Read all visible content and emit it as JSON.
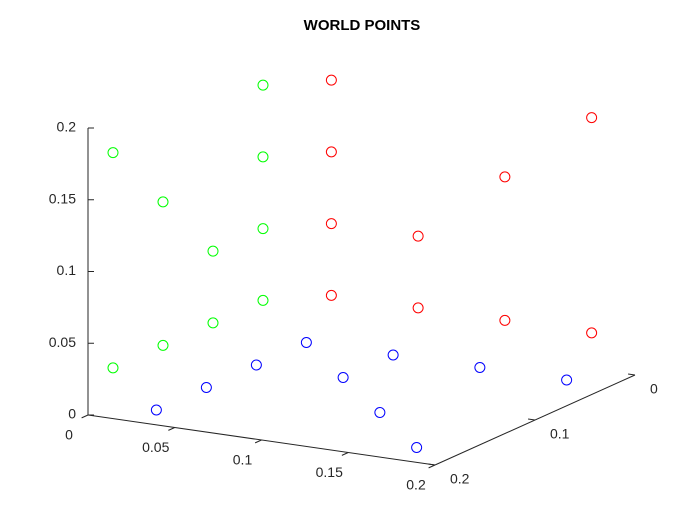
{
  "chart_data": {
    "type": "scatter3d",
    "title": "WORLD POINTS",
    "xlim": [
      0,
      0.2
    ],
    "ylim": [
      0,
      0.2
    ],
    "zlim": [
      0,
      0.2
    ],
    "xticks": [
      0,
      0.05,
      0.1,
      0.15,
      0.2
    ],
    "yticks": [
      0,
      0.1,
      0.2
    ],
    "zticks": [
      0,
      0.05,
      0.1,
      0.15,
      0.2
    ],
    "series": [
      {
        "color": "#0000ff",
        "x": [
          0.025,
          0.025,
          0.025,
          0.025,
          0.075,
          0.075,
          0.125,
          0.125,
          0.175,
          0.175
        ],
        "y": [
          0.175,
          0.125,
          0.075,
          0.025,
          0.075,
          0.025,
          0.125,
          0.025,
          0.175,
          0.025
        ],
        "z": [
          0,
          0,
          0,
          0,
          0,
          0,
          0,
          0,
          0,
          0
        ]
      },
      {
        "color": "#00ff00",
        "x": [
          0,
          0,
          0,
          0,
          0,
          0,
          0,
          0,
          0,
          0
        ],
        "y": [
          0.025,
          0.025,
          0.025,
          0.025,
          0.075,
          0.125,
          0.175,
          0.075,
          0.125,
          0.175
        ],
        "z": [
          0.025,
          0.075,
          0.125,
          0.175,
          0.075,
          0.125,
          0.175,
          0.025,
          0.025,
          0.025
        ]
      },
      {
        "color": "#ff0000",
        "x": [
          0.025,
          0.025,
          0.025,
          0.025,
          0.075,
          0.075,
          0.125,
          0.125,
          0.175,
          0.175
        ],
        "y": [
          0,
          0,
          0,
          0,
          0,
          0,
          0,
          0,
          0,
          0
        ],
        "z": [
          0.175,
          0.125,
          0.075,
          0.025,
          0.075,
          0.025,
          0.125,
          0.025,
          0.175,
          0.025
        ]
      }
    ]
  }
}
